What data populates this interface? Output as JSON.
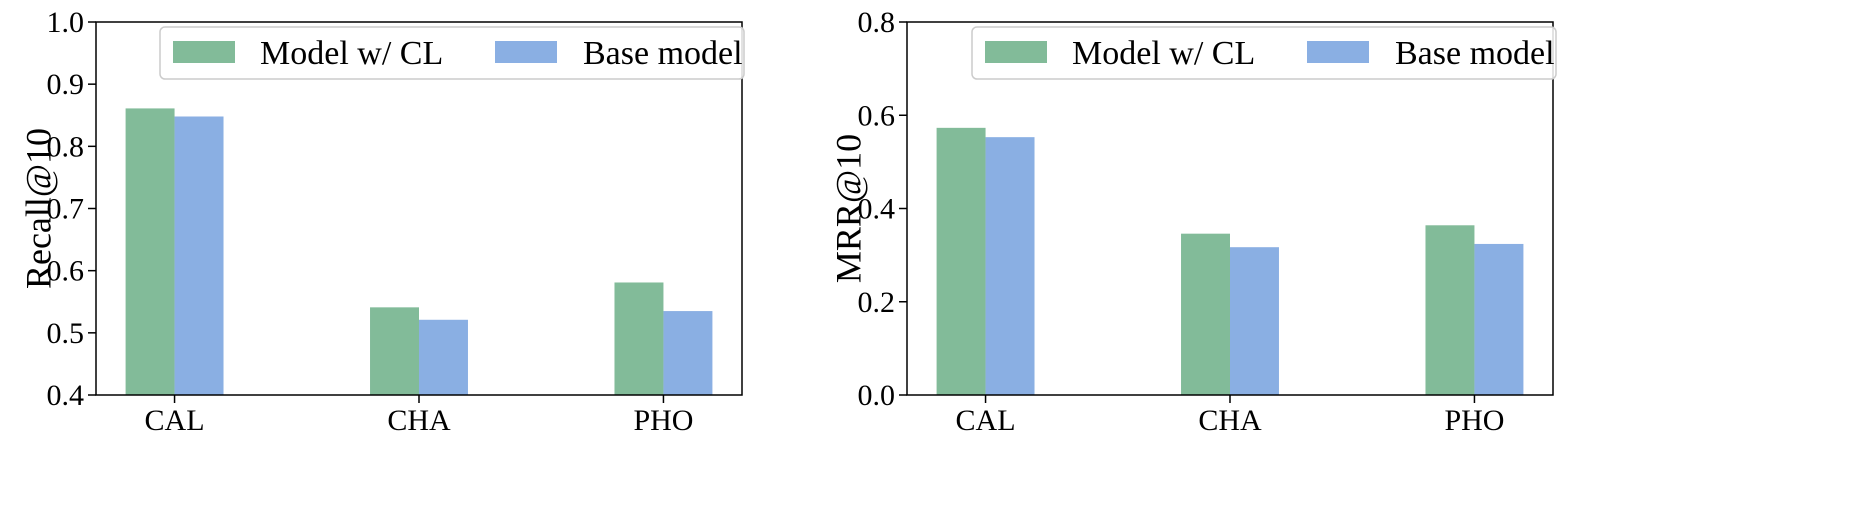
{
  "chart_data": [
    {
      "type": "bar",
      "categories": [
        "CAL",
        "CHA",
        "PHO"
      ],
      "series": [
        {
          "name": "Model w/ CL",
          "color": "#82bb99",
          "values": [
            0.861,
            0.541,
            0.581
          ]
        },
        {
          "name": "Base model",
          "color": "#8aafe3",
          "values": [
            0.848,
            0.521,
            0.535
          ]
        }
      ],
      "ylabel": "Recall@10",
      "xlabel": "",
      "ylim": [
        0.4,
        1.0
      ],
      "yticks": [
        "0.4",
        "0.5",
        "0.6",
        "0.7",
        "0.8",
        "0.9",
        "1.0"
      ],
      "legend": "top-right",
      "grid": false
    },
    {
      "type": "bar",
      "categories": [
        "CAL",
        "CHA",
        "PHO"
      ],
      "series": [
        {
          "name": "Model w/ CL",
          "color": "#82bb99",
          "values": [
            0.573,
            0.346,
            0.364
          ]
        },
        {
          "name": "Base model",
          "color": "#8aafe3",
          "values": [
            0.553,
            0.317,
            0.324
          ]
        }
      ],
      "ylabel": "MRR@10",
      "xlabel": "",
      "ylim": [
        0.0,
        0.8
      ],
      "yticks": [
        "0.0",
        "0.2",
        "0.4",
        "0.6",
        "0.8"
      ],
      "legend": "top-right",
      "grid": false
    }
  ]
}
